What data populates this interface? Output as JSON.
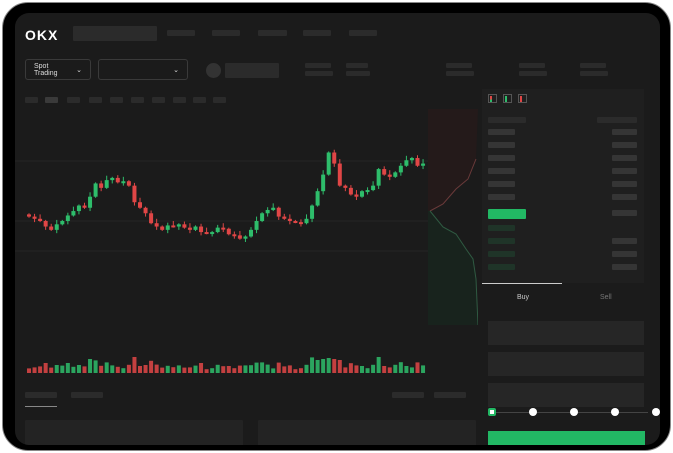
{
  "brand": {
    "logo": "OKX"
  },
  "toolbar": {
    "spot_trading_label": "Spot Trading",
    "pair_select_value": ""
  },
  "trade_panel": {
    "buy_tab": "Buy",
    "sell_tab": "Sell",
    "active_tab": "Buy",
    "slider_stops": 5
  },
  "colors": {
    "up": "#2ebd6b",
    "down": "#e04646",
    "accent": "#22b864",
    "background": "#1b1b1b"
  },
  "chart": {
    "closes": [
      42,
      40,
      38,
      33,
      30,
      35,
      38,
      43,
      47,
      52,
      50,
      60,
      72,
      68,
      75,
      77,
      73,
      74,
      70,
      55,
      50,
      45,
      36,
      33,
      30,
      34,
      33,
      35,
      32,
      30,
      33,
      28,
      27,
      28,
      32,
      31,
      26,
      25,
      22,
      24,
      30,
      38,
      45,
      48,
      50,
      42,
      40,
      38,
      37,
      36,
      40,
      52,
      65,
      80,
      100,
      90,
      70,
      68,
      62,
      60,
      65,
      66,
      70,
      85,
      80,
      78,
      82,
      88,
      93,
      95,
      88,
      90
    ]
  },
  "icons": [
    "order-book-both-icon",
    "order-book-buy-icon",
    "order-book-sell-icon",
    "chevron-down-icon"
  ]
}
